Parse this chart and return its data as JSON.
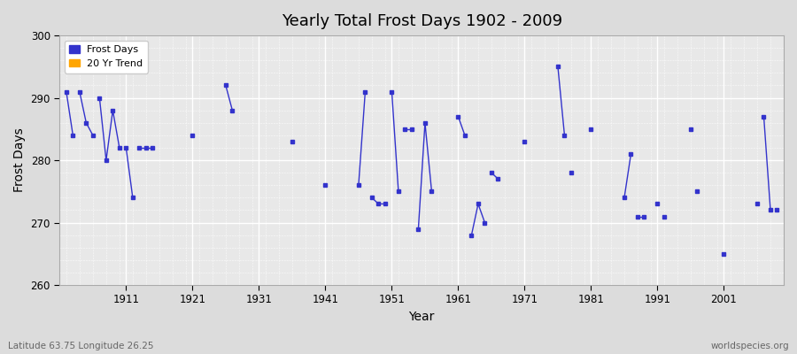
{
  "title": "Yearly Total Frost Days 1902 - 2009",
  "xlabel": "Year",
  "ylabel": "Frost Days",
  "subtitle": "Latitude 63.75 Longitude 26.25",
  "watermark": "worldspecies.org",
  "line_color": "#3333CC",
  "trend_color": "#FFA500",
  "bg_color": "#DCDCDC",
  "plot_bg_color": "#E8E8E8",
  "ylim": [
    260,
    300
  ],
  "xlim": [
    1901,
    2010
  ],
  "yticks": [
    260,
    270,
    280,
    290,
    300
  ],
  "xticks": [
    1911,
    1921,
    1931,
    1941,
    1951,
    1961,
    1971,
    1981,
    1991,
    2001
  ],
  "segments": [
    {
      "years": [
        1902,
        1903
      ],
      "values": [
        291,
        284
      ]
    },
    {
      "years": [
        1904,
        1905,
        1906
      ],
      "values": [
        291,
        286,
        284
      ]
    },
    {
      "years": [
        1907,
        1908,
        1909,
        1910
      ],
      "values": [
        290,
        280,
        288,
        282
      ]
    },
    {
      "years": [
        1911,
        1912
      ],
      "values": [
        282,
        274
      ]
    },
    {
      "years": [
        1913,
        1914,
        1915
      ],
      "values": [
        282,
        282,
        282
      ]
    },
    {
      "years": [
        1921
      ],
      "values": [
        284
      ]
    },
    {
      "years": [
        1926,
        1927
      ],
      "values": [
        292,
        288
      ]
    },
    {
      "years": [
        1936
      ],
      "values": [
        283
      ]
    },
    {
      "years": [
        1941
      ],
      "values": [
        276
      ]
    },
    {
      "years": [
        1946,
        1947
      ],
      "values": [
        276,
        291
      ]
    },
    {
      "years": [
        1948,
        1949,
        1950
      ],
      "values": [
        274,
        273,
        273
      ]
    },
    {
      "years": [
        1951,
        1952
      ],
      "values": [
        291,
        275
      ]
    },
    {
      "years": [
        1953,
        1954
      ],
      "values": [
        285,
        285
      ]
    },
    {
      "years": [
        1955,
        1956,
        1957
      ],
      "values": [
        269,
        286,
        275
      ]
    },
    {
      "years": [
        1961,
        1962
      ],
      "values": [
        287,
        284
      ]
    },
    {
      "years": [
        1963,
        1964,
        1965
      ],
      "values": [
        268,
        273,
        270
      ]
    },
    {
      "years": [
        1966,
        1967
      ],
      "values": [
        278,
        277
      ]
    },
    {
      "years": [
        1971
      ],
      "values": [
        283
      ]
    },
    {
      "years": [
        1976,
        1977
      ],
      "values": [
        295,
        284
      ]
    },
    {
      "years": [
        1978
      ],
      "values": [
        278
      ]
    },
    {
      "years": [
        1981
      ],
      "values": [
        285
      ]
    },
    {
      "years": [
        1986,
        1987
      ],
      "values": [
        274,
        281
      ]
    },
    {
      "years": [
        1988,
        1989
      ],
      "values": [
        271,
        271
      ]
    },
    {
      "years": [
        1991
      ],
      "values": [
        273
      ]
    },
    {
      "years": [
        1992
      ],
      "values": [
        271
      ]
    },
    {
      "years": [
        1996
      ],
      "values": [
        285
      ]
    },
    {
      "years": [
        1997
      ],
      "values": [
        275
      ]
    },
    {
      "years": [
        2001
      ],
      "values": [
        265
      ]
    },
    {
      "years": [
        2006
      ],
      "values": [
        273
      ]
    },
    {
      "years": [
        2007,
        2008
      ],
      "values": [
        287,
        272
      ]
    },
    {
      "years": [
        2009
      ],
      "values": [
        272
      ]
    }
  ],
  "legend_entries": [
    "Frost Days",
    "20 Yr Trend"
  ]
}
